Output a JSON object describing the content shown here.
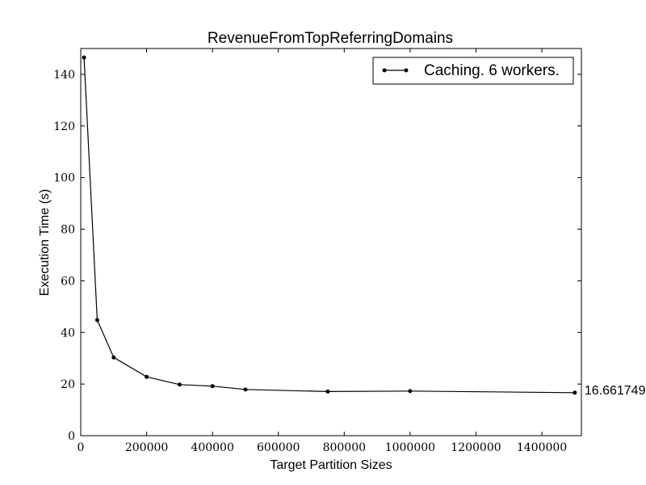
{
  "chart_data": {
    "type": "line",
    "title": "RevenueFromTopReferringDomains",
    "xlabel": "Target Partition Sizes",
    "ylabel": "Execution Time (s)",
    "xlim": [
      0,
      1520000
    ],
    "ylim": [
      0,
      150
    ],
    "xticks": [
      0,
      200000,
      400000,
      600000,
      800000,
      1000000,
      1200000,
      1400000
    ],
    "yticks": [
      0,
      20,
      40,
      60,
      80,
      100,
      120,
      140
    ],
    "grid": false,
    "legend_position": "top-right",
    "series": [
      {
        "name": "Caching. 6 workers.",
        "color": "#000000",
        "marker": "dot",
        "x": [
          10000,
          50000,
          100000,
          200000,
          300000,
          400000,
          500000,
          750000,
          1000000,
          1500000
        ],
        "y": [
          146.5,
          44.8,
          30.3,
          22.8,
          19.8,
          19.2,
          17.9,
          17.1,
          17.3,
          16.66
        ]
      }
    ],
    "annotations": [
      {
        "text": "16.6617499",
        "x": 1500000,
        "y": 16.66
      }
    ]
  }
}
